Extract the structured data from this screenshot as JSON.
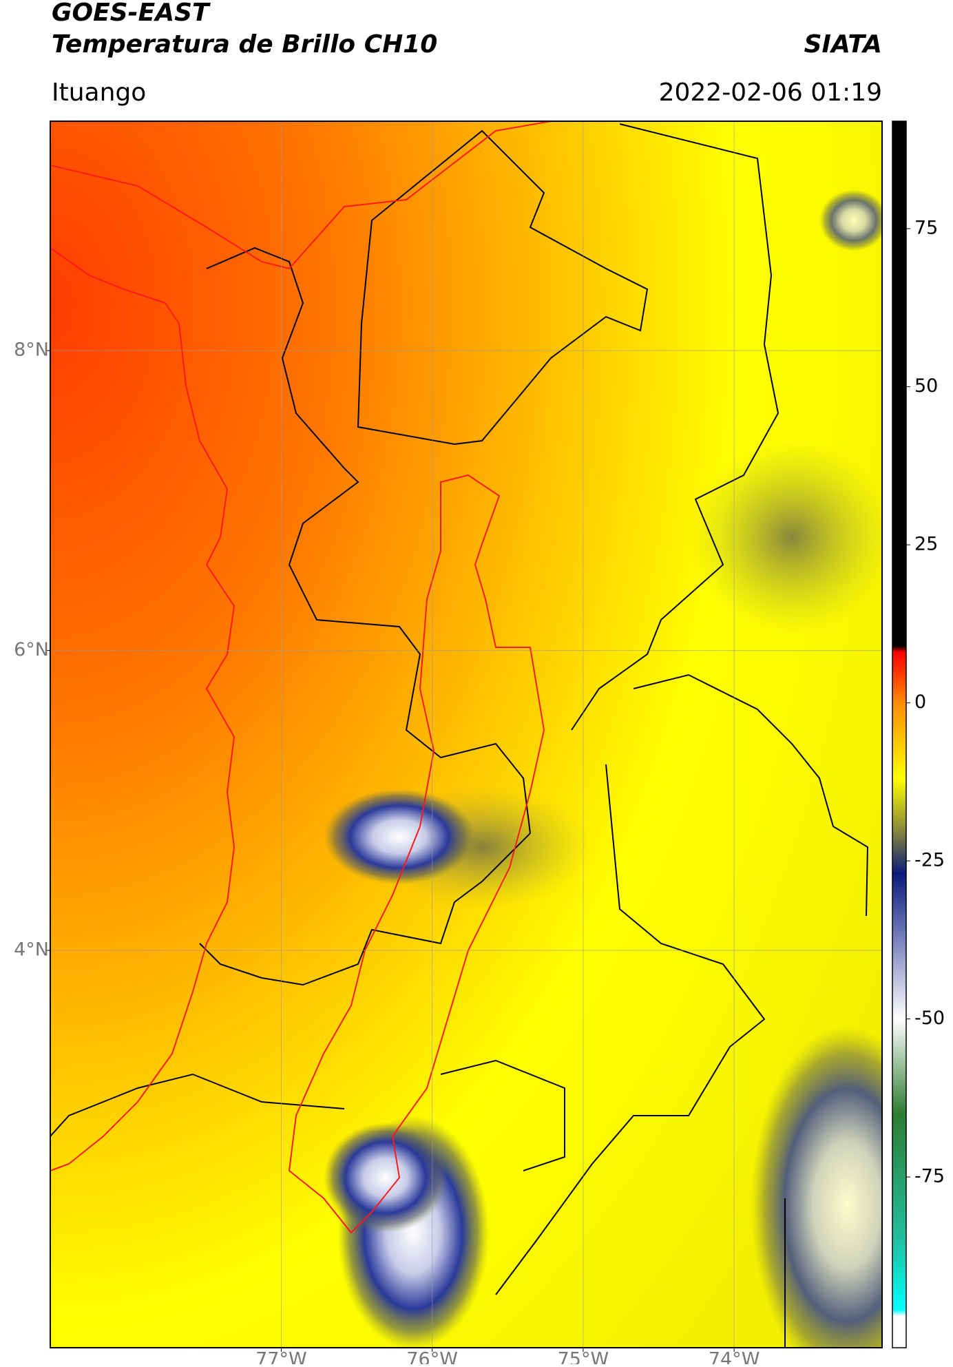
{
  "chart_data": {
    "type": "map",
    "title": "GOES-EAST",
    "subtitle": "Temperatura de Brillo CH10",
    "source": "SIATA",
    "region": "Ituango",
    "timestamp": "2022-02-06 01:19",
    "xlim": [
      -78.53,
      -73.02
    ],
    "ylim": [
      1.35,
      9.53
    ],
    "xticks": [
      {
        "value": -77,
        "label": "77°W"
      },
      {
        "value": -76,
        "label": "76°W"
      },
      {
        "value": -75,
        "label": "75°W"
      },
      {
        "value": -74,
        "label": "74°W"
      }
    ],
    "yticks": [
      {
        "value": 4,
        "label": "4°N"
      },
      {
        "value": 6,
        "label": "6°N"
      },
      {
        "value": 8,
        "label": "8°N"
      }
    ],
    "grid": true,
    "colorbar": {
      "lim": [
        -102,
        92
      ],
      "ticks": [
        75,
        50,
        25,
        0,
        -25,
        -50,
        -75
      ],
      "colormap": [
        {
          "value": 92,
          "color": "#000000"
        },
        {
          "value": 9,
          "color": "#000000"
        },
        {
          "value": 8,
          "color": "#ff0000"
        },
        {
          "value": 0,
          "color": "#ff8c00"
        },
        {
          "value": -12,
          "color": "#ffff00"
        },
        {
          "value": -20,
          "color": "#8a8a3a"
        },
        {
          "value": -27,
          "color": "#0a1a7a"
        },
        {
          "value": -38,
          "color": "#7f88c0"
        },
        {
          "value": -50,
          "color": "#ffffff"
        },
        {
          "value": -65,
          "color": "#2e7d32"
        },
        {
          "value": -85,
          "color": "#20c0a0"
        },
        {
          "value": -96,
          "color": "#00ffff"
        },
        {
          "value": -97,
          "color": "#ffffff"
        },
        {
          "value": -102,
          "color": "#ffffff"
        }
      ]
    }
  }
}
